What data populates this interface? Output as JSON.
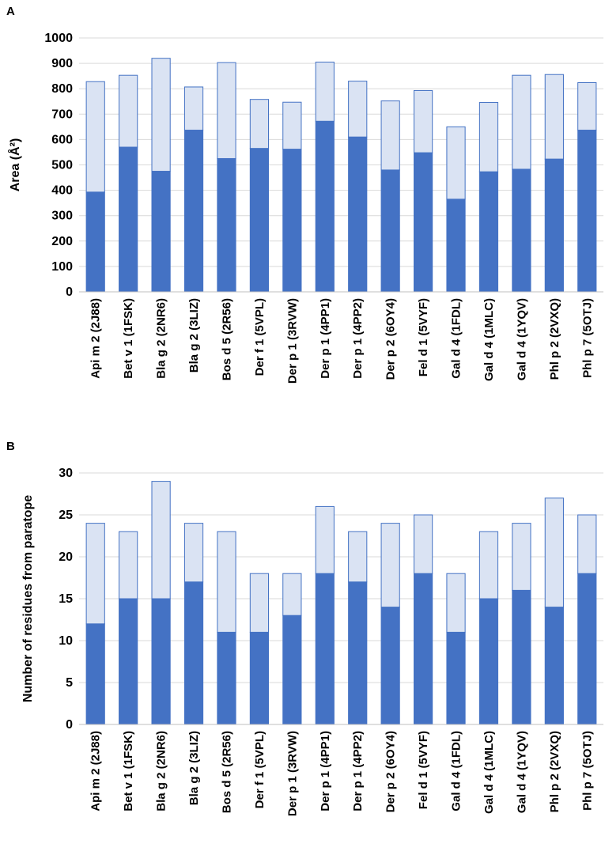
{
  "chart_data": [
    {
      "panel_label": "A",
      "type": "bar",
      "stacked": true,
      "ylabel": "Area (Å²)",
      "xlabel": "",
      "ylim": [
        0,
        1000
      ],
      "yticks": [
        0,
        100,
        200,
        300,
        400,
        500,
        600,
        700,
        800,
        900,
        1000
      ],
      "grid": true,
      "categories": [
        "Api m 2 (2J88)",
        "Bet v 1 (1FSK)",
        "Bla g 2 (2NR6)",
        "Bla g 2 (3LIZ)",
        "Bos d 5 (2R56)",
        "Der f 1 (5VPL)",
        "Der p 1 (3RVW)",
        "Der p 1 (4PP1)",
        "Der p 1 (4PP2)",
        "Der p 2 (6OY4)",
        "Fel d 1 (5VYF)",
        "Gal d 4 (1FDL)",
        "Gal d 4 (1MLC)",
        "Gal d 4 (1YQV)",
        "Phl p 2 (2VXQ)",
        "Phl p 7 (5OTJ)"
      ],
      "series": [
        {
          "name": "lower segment",
          "color": "#4472c4",
          "values": [
            393,
            570,
            475,
            637,
            525,
            565,
            562,
            672,
            610,
            480,
            548,
            365,
            473,
            483,
            523,
            637
          ]
        },
        {
          "name": "upper segment",
          "color": "#dae3f3",
          "values": [
            435,
            283,
            445,
            170,
            378,
            193,
            185,
            233,
            220,
            272,
            245,
            285,
            273,
            370,
            333,
            187
          ]
        }
      ]
    },
    {
      "panel_label": "B",
      "type": "bar",
      "stacked": true,
      "ylabel": "Number of residues from paratope",
      "xlabel": "",
      "ylim": [
        0,
        30
      ],
      "yticks": [
        0,
        5,
        10,
        15,
        20,
        25,
        30
      ],
      "grid": true,
      "categories": [
        "Api m 2 (2J88)",
        "Bet v 1 (1FSK)",
        "Bla g 2 (2NR6)",
        "Bla g 2 (3LIZ)",
        "Bos d 5 (2R56)",
        "Der f 1 (5VPL)",
        "Der p 1 (3RVW)",
        "Der p 1 (4PP1)",
        "Der p 1 (4PP2)",
        "Der p 2 (6OY4)",
        "Fel d 1 (5VYF)",
        "Gal d 4 (1FDL)",
        "Gal d 4 (1MLC)",
        "Gal d 4 (1YQV)",
        "Phl p 2 (2VXQ)",
        "Phl p 7 (5OTJ)"
      ],
      "series": [
        {
          "name": "lower segment",
          "color": "#4472c4",
          "values": [
            12,
            15,
            15,
            17,
            11,
            11,
            13,
            18,
            17,
            14,
            18,
            11,
            15,
            16,
            14,
            18
          ]
        },
        {
          "name": "upper segment",
          "color": "#dae3f3",
          "values": [
            12,
            8,
            14,
            7,
            12,
            7,
            5,
            8,
            6,
            10,
            7,
            7,
            8,
            8,
            13,
            7
          ]
        }
      ]
    }
  ]
}
